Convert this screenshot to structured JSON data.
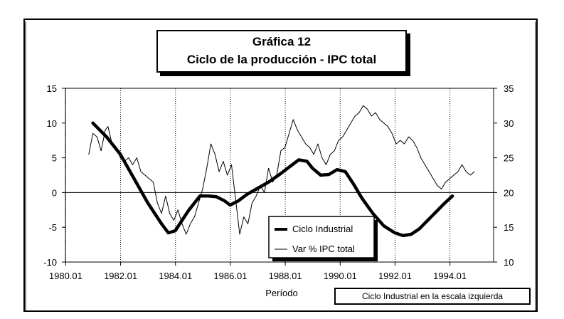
{
  "chart_data": {
    "type": "line",
    "title": "Gráfica 12",
    "subtitle": "Ciclo de la producción - IPC total",
    "xlabel": "Período",
    "note": "Ciclo Industrial en la escala izquierda",
    "x_ticks": [
      "1980.01",
      "1982.01",
      "1984.01",
      "1986.01",
      "1988.01",
      "1990.01",
      "1992.01",
      "1994.01"
    ],
    "xlim": [
      1980.0,
      1995.6
    ],
    "y_left": {
      "ticks": [
        "15",
        "10",
        "5",
        "0",
        "-5",
        "-10"
      ],
      "lim": [
        -10,
        15
      ]
    },
    "y_right": {
      "ticks": [
        "35",
        "30",
        "25",
        "20",
        "15",
        "10"
      ],
      "lim": [
        10,
        35
      ]
    },
    "grid": "vertical dotted",
    "legend_position": "bottom-center",
    "series": [
      {
        "name": "Ciclo Industrial",
        "axis": "left",
        "style": "thick",
        "x": [
          1981.0,
          1981.5,
          1982.0,
          1982.5,
          1983.0,
          1983.5,
          1983.75,
          1984.0,
          1984.25,
          1984.5,
          1984.9,
          1985.2,
          1985.5,
          1985.8,
          1986.0,
          1986.3,
          1986.6,
          1987.0,
          1987.4,
          1987.8,
          1988.2,
          1988.5,
          1988.8,
          1989.0,
          1989.3,
          1989.6,
          1989.9,
          1990.2,
          1990.5,
          1990.8,
          1991.2,
          1991.6,
          1992.0,
          1992.3,
          1992.6,
          1992.9,
          1993.2,
          1993.5,
          1993.8,
          1994.1
        ],
        "values": [
          10.0,
          8.0,
          5.5,
          2.0,
          -1.5,
          -4.5,
          -5.8,
          -5.5,
          -4.0,
          -2.5,
          -0.5,
          -0.5,
          -0.6,
          -1.2,
          -1.8,
          -1.2,
          -0.3,
          0.6,
          1.5,
          2.6,
          3.8,
          4.7,
          4.5,
          3.5,
          2.5,
          2.6,
          3.3,
          3.0,
          1.2,
          -0.8,
          -3.0,
          -4.8,
          -5.8,
          -6.2,
          -6.0,
          -5.2,
          -4.0,
          -2.8,
          -1.6,
          -0.5
        ]
      },
      {
        "name": "Var % IPC total",
        "axis": "right",
        "style": "thin",
        "x": [
          1980.85,
          1981.0,
          1981.15,
          1981.3,
          1981.45,
          1981.55,
          1981.7,
          1981.85,
          1982.0,
          1982.15,
          1982.3,
          1982.45,
          1982.6,
          1982.75,
          1982.9,
          1983.05,
          1983.2,
          1983.35,
          1983.5,
          1983.65,
          1983.8,
          1983.95,
          1984.1,
          1984.25,
          1984.4,
          1984.55,
          1984.7,
          1984.85,
          1985.0,
          1985.15,
          1985.3,
          1985.45,
          1985.6,
          1985.75,
          1985.9,
          1986.05,
          1986.2,
          1986.35,
          1986.5,
          1986.65,
          1986.8,
          1986.95,
          1987.1,
          1987.25,
          1987.4,
          1987.55,
          1987.7,
          1987.85,
          1988.0,
          1988.15,
          1988.3,
          1988.45,
          1988.6,
          1988.75,
          1988.9,
          1989.05,
          1989.2,
          1989.35,
          1989.5,
          1989.65,
          1989.8,
          1989.95,
          1990.1,
          1990.25,
          1990.4,
          1990.55,
          1990.7,
          1990.85,
          1991.0,
          1991.15,
          1991.3,
          1991.45,
          1991.6,
          1991.75,
          1991.9,
          1992.05,
          1992.2,
          1992.35,
          1992.5,
          1992.65,
          1992.8,
          1992.95,
          1993.1,
          1993.25,
          1993.4,
          1993.55,
          1993.7,
          1993.85,
          1994.0,
          1994.15,
          1994.3,
          1994.45,
          1994.6,
          1994.75,
          1994.9
        ],
        "values": [
          25.5,
          28.5,
          28.0,
          26.0,
          29.0,
          29.5,
          27.0,
          26.5,
          25.0,
          24.5,
          25.0,
          24.0,
          25.0,
          23.0,
          22.5,
          22.0,
          21.5,
          18.5,
          17.0,
          19.5,
          17.0,
          16.0,
          17.5,
          15.5,
          14.0,
          15.5,
          16.5,
          18.5,
          20.5,
          23.5,
          27.0,
          25.5,
          23.0,
          24.5,
          22.5,
          24.0,
          19.0,
          14.0,
          16.5,
          15.5,
          18.5,
          19.5,
          21.0,
          20.0,
          23.5,
          21.5,
          22.5,
          26.0,
          26.5,
          28.5,
          30.5,
          29.0,
          28.0,
          27.0,
          26.5,
          25.5,
          27.0,
          25.0,
          24.0,
          25.5,
          26.0,
          27.5,
          28.0,
          29.0,
          30.0,
          31.0,
          31.5,
          32.5,
          32.0,
          31.0,
          31.5,
          30.5,
          30.0,
          29.5,
          28.5,
          27.0,
          27.5,
          27.0,
          28.0,
          27.5,
          26.5,
          25.0,
          24.0,
          23.0,
          22.0,
          21.0,
          20.5,
          21.5,
          22.0,
          22.5,
          23.0,
          24.0,
          23.0,
          22.5,
          23.0
        ]
      }
    ]
  }
}
